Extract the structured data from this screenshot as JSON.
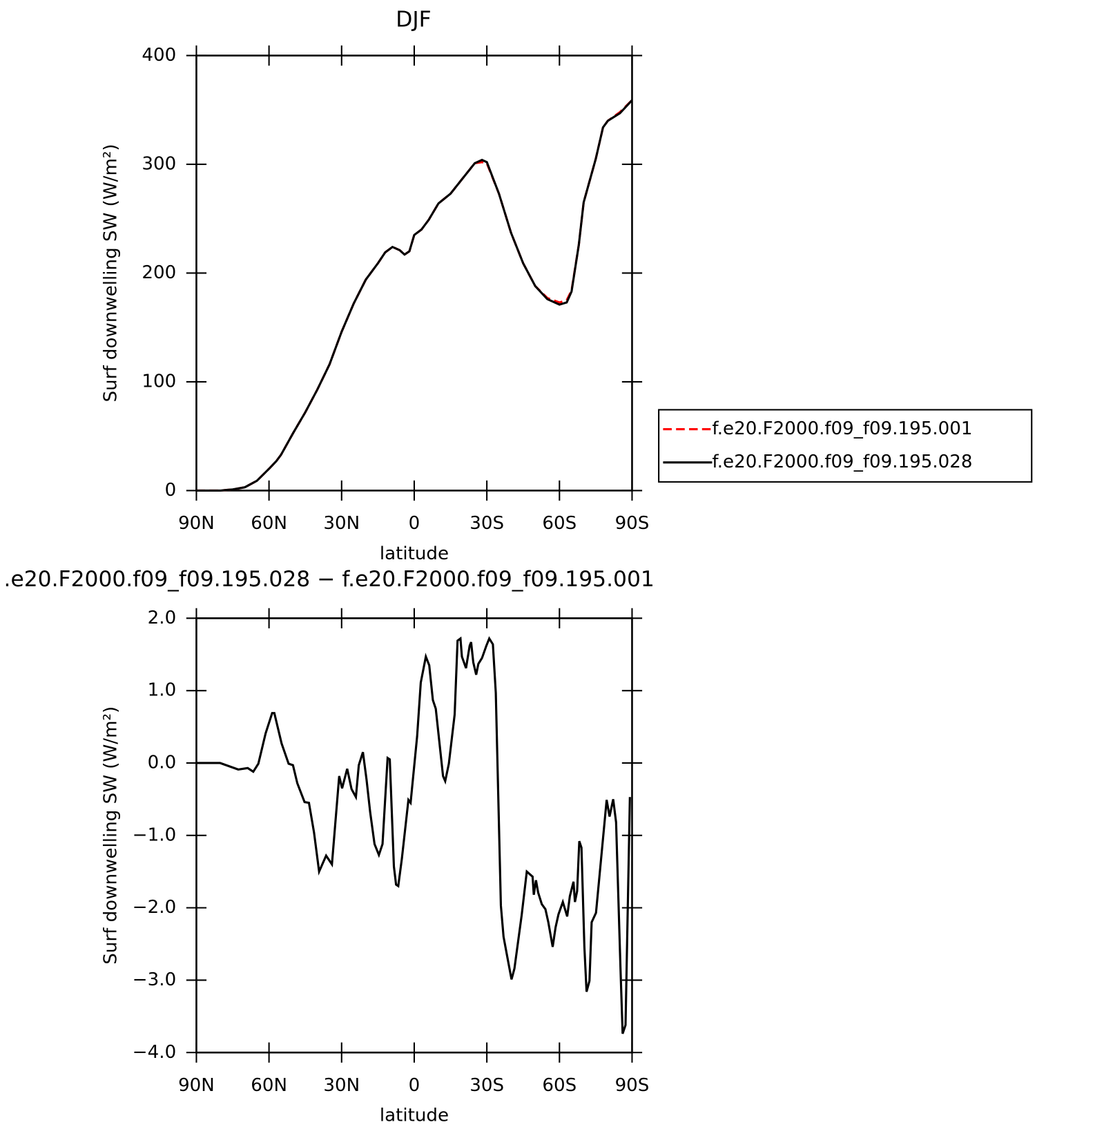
{
  "chart_data": [
    {
      "type": "line",
      "title": "DJF",
      "xlabel": "latitude",
      "ylabel": "Surf downwelling SW (W/m²)",
      "xlim": [
        90,
        -90
      ],
      "xticks": [
        {
          "value": 90,
          "label": "90N"
        },
        {
          "value": 60,
          "label": "60N"
        },
        {
          "value": 30,
          "label": "30N"
        },
        0,
        {
          "value": -30,
          "label": "30S"
        },
        {
          "value": -60,
          "label": "60S"
        },
        {
          "value": -90,
          "label": "90S"
        }
      ],
      "ylim": [
        0,
        400
      ],
      "yticks": [
        0,
        100,
        200,
        300,
        400
      ],
      "legend": "right",
      "x": [
        90,
        80,
        78,
        75,
        70,
        65,
        60,
        57,
        55,
        50,
        45,
        40,
        35,
        30,
        25,
        20,
        15,
        12,
        9,
        6,
        4,
        2,
        0,
        -3,
        -6,
        -10,
        -15,
        -20,
        -25,
        -28,
        -30,
        -35,
        -40,
        -45,
        -50,
        -55,
        -60,
        -63,
        -65,
        -68,
        -70,
        -75,
        -78,
        -80,
        -85,
        -90
      ],
      "series": [
        {
          "name": "f.e20.F2000.f09_f09.195.001",
          "color": "#ff0000",
          "linestyle": "dashed",
          "values": [
            0,
            0,
            0.5,
            1,
            3,
            9,
            20,
            27,
            33,
            53,
            72,
            93,
            116,
            146,
            172,
            194,
            209,
            219,
            224,
            221,
            217,
            220,
            235,
            240,
            249,
            264,
            273,
            287,
            301,
            302,
            301,
            273,
            237,
            209,
            188,
            177,
            173,
            175,
            184,
            226,
            265,
            305,
            334,
            340,
            348,
            359
          ]
        },
        {
          "name": "f.e20.F2000.f09_f09.195.028",
          "color": "#000000",
          "linestyle": "solid",
          "values": [
            0,
            0,
            0.5,
            1,
            3,
            9,
            20,
            27,
            33,
            53,
            72,
            93,
            116,
            146,
            172,
            194,
            209,
            219,
            224,
            221,
            217,
            220,
            235,
            240,
            249,
            264,
            273,
            287,
            301,
            304,
            302,
            273,
            237,
            209,
            188,
            176,
            171,
            173,
            183,
            226,
            265,
            305,
            334,
            340,
            347,
            359
          ]
        }
      ]
    },
    {
      "type": "line",
      "title": ".e20.F2000.f09_f09.195.028 − f.e20.F2000.f09_f09.195.001",
      "xlabel": "latitude",
      "ylabel": "Surf downwelling SW (W/m²)",
      "xlim": [
        90,
        -90
      ],
      "xticks": [
        {
          "value": 90,
          "label": "90N"
        },
        {
          "value": 60,
          "label": "60N"
        },
        {
          "value": 30,
          "label": "30N"
        },
        0,
        {
          "value": -30,
          "label": "30S"
        },
        {
          "value": -60,
          "label": "60S"
        },
        {
          "value": -90,
          "label": "90S"
        }
      ],
      "ylim": [
        -4,
        2
      ],
      "yticks": [
        {
          "value": 2,
          "label": "2.0"
        },
        {
          "value": 1,
          "label": "1.0"
        },
        {
          "value": 0,
          "label": "0.0"
        },
        {
          "value": -1,
          "label": "−1.0"
        },
        {
          "value": -2,
          "label": "−2.0"
        },
        {
          "value": -3,
          "label": "−3.0"
        },
        {
          "value": -4,
          "label": "−4.0"
        }
      ],
      "x": [
        90,
        80.2,
        72.7,
        68.8,
        66.5,
        64.4,
        61.4,
        58.7,
        57.8,
        54.8,
        51.9,
        50.1,
        48.3,
        45.3,
        43.5,
        41.4,
        39.3,
        36.4,
        34.0,
        31.0,
        29.8,
        27.7,
        25.9,
        24.1,
        22.9,
        21.2,
        19.7,
        18.2,
        16.4,
        14.6,
        13.1,
        11.0,
        10.1,
        8.4,
        7.5,
        6.6,
        5.1,
        2.4,
        1.5,
        -1.2,
        -2.7,
        -4.8,
        -6.2,
        -7.7,
        -8.9,
        -11.9,
        -12.8,
        -14.3,
        -16.7,
        -17.9,
        -19.1,
        -19.7,
        -21.4,
        -22.9,
        -23.5,
        -24.4,
        -25.6,
        -26.5,
        -28.0,
        -29.8,
        -31.0,
        -32.5,
        -33.7,
        -35.8,
        -36.9,
        -38.4,
        -40.2,
        -41.4,
        -44.4,
        -46.5,
        -48.9,
        -49.4,
        -50.3,
        -51.2,
        -52.7,
        -54.2,
        -55.4,
        -57.2,
        -58.4,
        -59.6,
        -61.4,
        -63.2,
        -64.3,
        -65.8,
        -66.4,
        -67.3,
        -68.2,
        -69.1,
        -70.3,
        -71.2,
        -72.4,
        -73.3,
        -75.1,
        -79.5,
        -80.7,
        -82.2,
        -83.4,
        -85.2,
        -86.1,
        -87.3,
        -89.1
      ],
      "color": "#000000",
      "values": [
        0,
        0,
        -0.09,
        -0.07,
        -0.12,
        -0.01,
        0.41,
        0.69,
        0.69,
        0.27,
        -0.01,
        -0.03,
        -0.28,
        -0.54,
        -0.55,
        -0.96,
        -1.5,
        -1.28,
        -1.4,
        -0.18,
        -0.35,
        -0.08,
        -0.36,
        -0.47,
        -0.03,
        0.15,
        -0.23,
        -0.68,
        -1.12,
        -1.27,
        -1.12,
        0.07,
        0.05,
        -1.43,
        -1.68,
        -1.7,
        -1.32,
        -0.51,
        -0.55,
        0.37,
        1.11,
        1.47,
        1.35,
        0.87,
        0.75,
        -0.18,
        -0.25,
        -0.01,
        0.67,
        1.69,
        1.72,
        1.47,
        1.31,
        1.62,
        1.67,
        1.39,
        1.22,
        1.37,
        1.45,
        1.62,
        1.72,
        1.64,
        0.97,
        -1.97,
        -2.4,
        -2.67,
        -2.99,
        -2.84,
        -2.1,
        -1.5,
        -1.57,
        -1.82,
        -1.62,
        -1.79,
        -1.95,
        -2.02,
        -2.2,
        -2.54,
        -2.27,
        -2.09,
        -1.92,
        -2.12,
        -1.84,
        -1.64,
        -1.92,
        -1.77,
        -1.08,
        -1.17,
        -2.54,
        -3.16,
        -3.01,
        -2.2,
        -2.07,
        -0.51,
        -0.74,
        -0.5,
        -0.82,
        -2.82,
        -3.74,
        -3.62,
        -0.47
      ]
    }
  ]
}
